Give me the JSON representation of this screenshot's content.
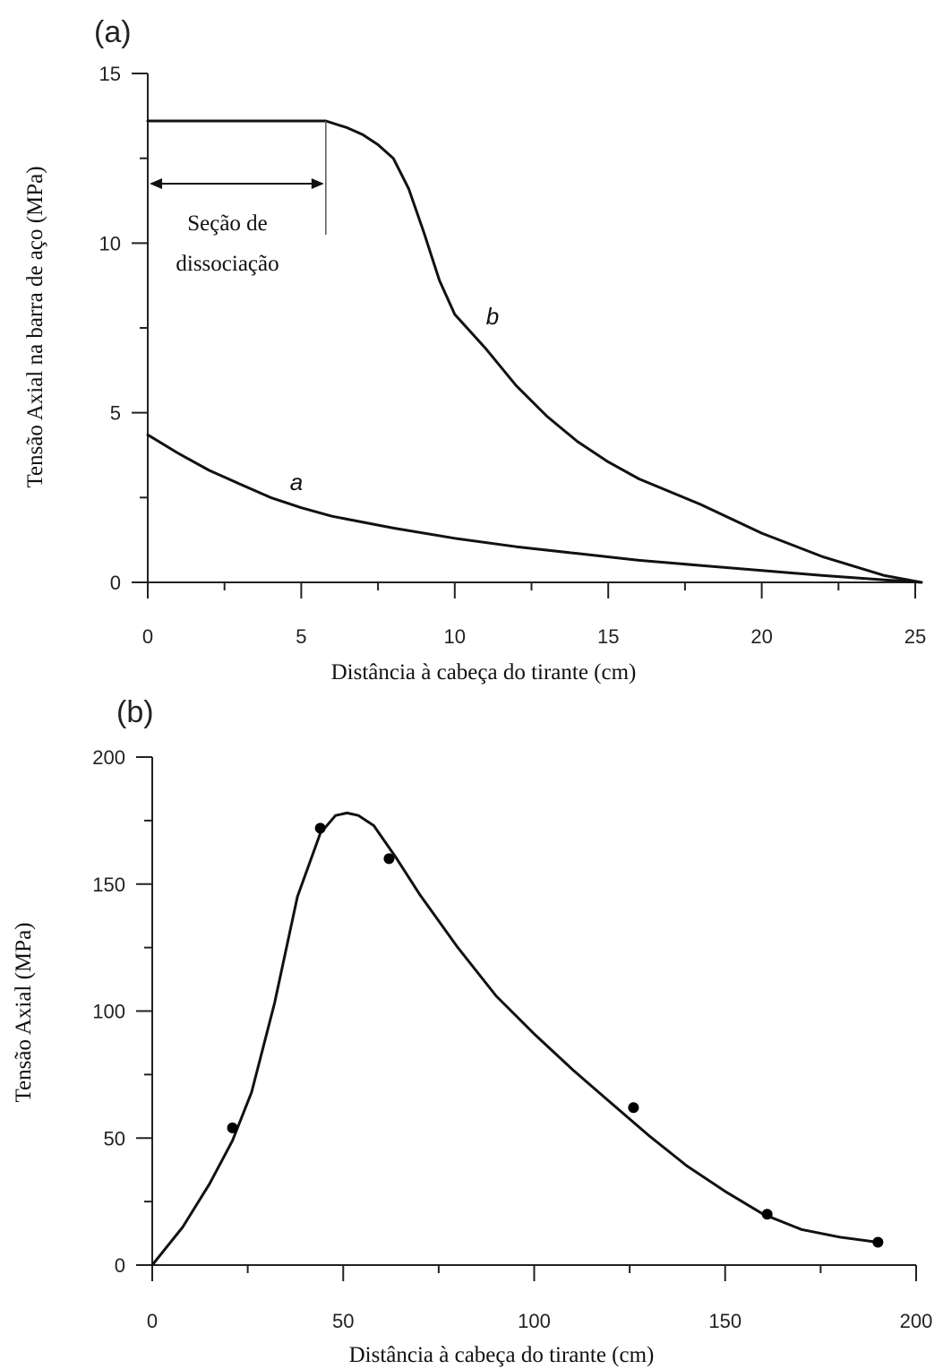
{
  "chart_data": [
    {
      "type": "line",
      "panel_label": "(a)",
      "xlabel": "Distância à cabeça do tirante (cm)",
      "ylabel": "Tensão Axial na barra de aço (MPa)",
      "xlim": [
        0,
        25
      ],
      "ylim": [
        0,
        15
      ],
      "x_ticks": [
        "0",
        "5",
        "10",
        "15",
        "20",
        "25"
      ],
      "y_ticks": [
        "0",
        "5",
        "10",
        "15"
      ],
      "grid": false,
      "annotation": {
        "line1": "Seção de",
        "line2": "dissociação",
        "range": [
          0,
          5.8
        ]
      },
      "series": [
        {
          "name": "a",
          "x": [
            0,
            1,
            2,
            3,
            4,
            5,
            6,
            8,
            10,
            12,
            14,
            16,
            18,
            20,
            22,
            24,
            25.2
          ],
          "y": [
            4.35,
            3.8,
            3.3,
            2.9,
            2.5,
            2.2,
            1.95,
            1.6,
            1.3,
            1.05,
            0.85,
            0.65,
            0.5,
            0.35,
            0.2,
            0.07,
            0
          ]
        },
        {
          "name": "b",
          "x": [
            0,
            2,
            4,
            5.8,
            6.5,
            7,
            7.5,
            8,
            8.5,
            9,
            9.5,
            10,
            10.5,
            11,
            12,
            13,
            14,
            15,
            16,
            18,
            20,
            22,
            24,
            25.2
          ],
          "y": [
            13.6,
            13.6,
            13.6,
            13.6,
            13.4,
            13.2,
            12.9,
            12.5,
            11.6,
            10.3,
            8.9,
            7.9,
            7.4,
            6.9,
            5.8,
            4.9,
            4.15,
            3.55,
            3.05,
            2.3,
            1.45,
            0.75,
            0.2,
            0
          ]
        }
      ]
    },
    {
      "type": "line",
      "panel_label": "(b)",
      "xlabel": "Distância à cabeça do tirante (cm)",
      "ylabel": "Tensão Axial (MPa)",
      "xlim": [
        0,
        200
      ],
      "ylim": [
        0,
        200
      ],
      "x_ticks": [
        "0",
        "50",
        "100",
        "150",
        "200"
      ],
      "y_ticks": [
        "0",
        "50",
        "100",
        "150",
        "200"
      ],
      "grid": false,
      "series": [
        {
          "name": "",
          "kind": "curve",
          "x": [
            0,
            8,
            15,
            21,
            26,
            32,
            38,
            44,
            48,
            51,
            54,
            58,
            64,
            70,
            80,
            90,
            100,
            110,
            120,
            130,
            140,
            150,
            160,
            170,
            180,
            190
          ],
          "y": [
            0,
            15,
            32,
            49,
            68,
            103,
            145,
            170,
            177,
            178,
            177,
            173,
            160,
            146,
            125,
            106,
            91,
            77,
            64,
            51,
            39,
            29,
            20,
            14,
            11,
            9
          ]
        },
        {
          "name": "",
          "kind": "points",
          "x": [
            21,
            44,
            62,
            126,
            161,
            190
          ],
          "y": [
            54,
            172,
            160,
            62,
            20,
            9
          ]
        }
      ]
    }
  ]
}
